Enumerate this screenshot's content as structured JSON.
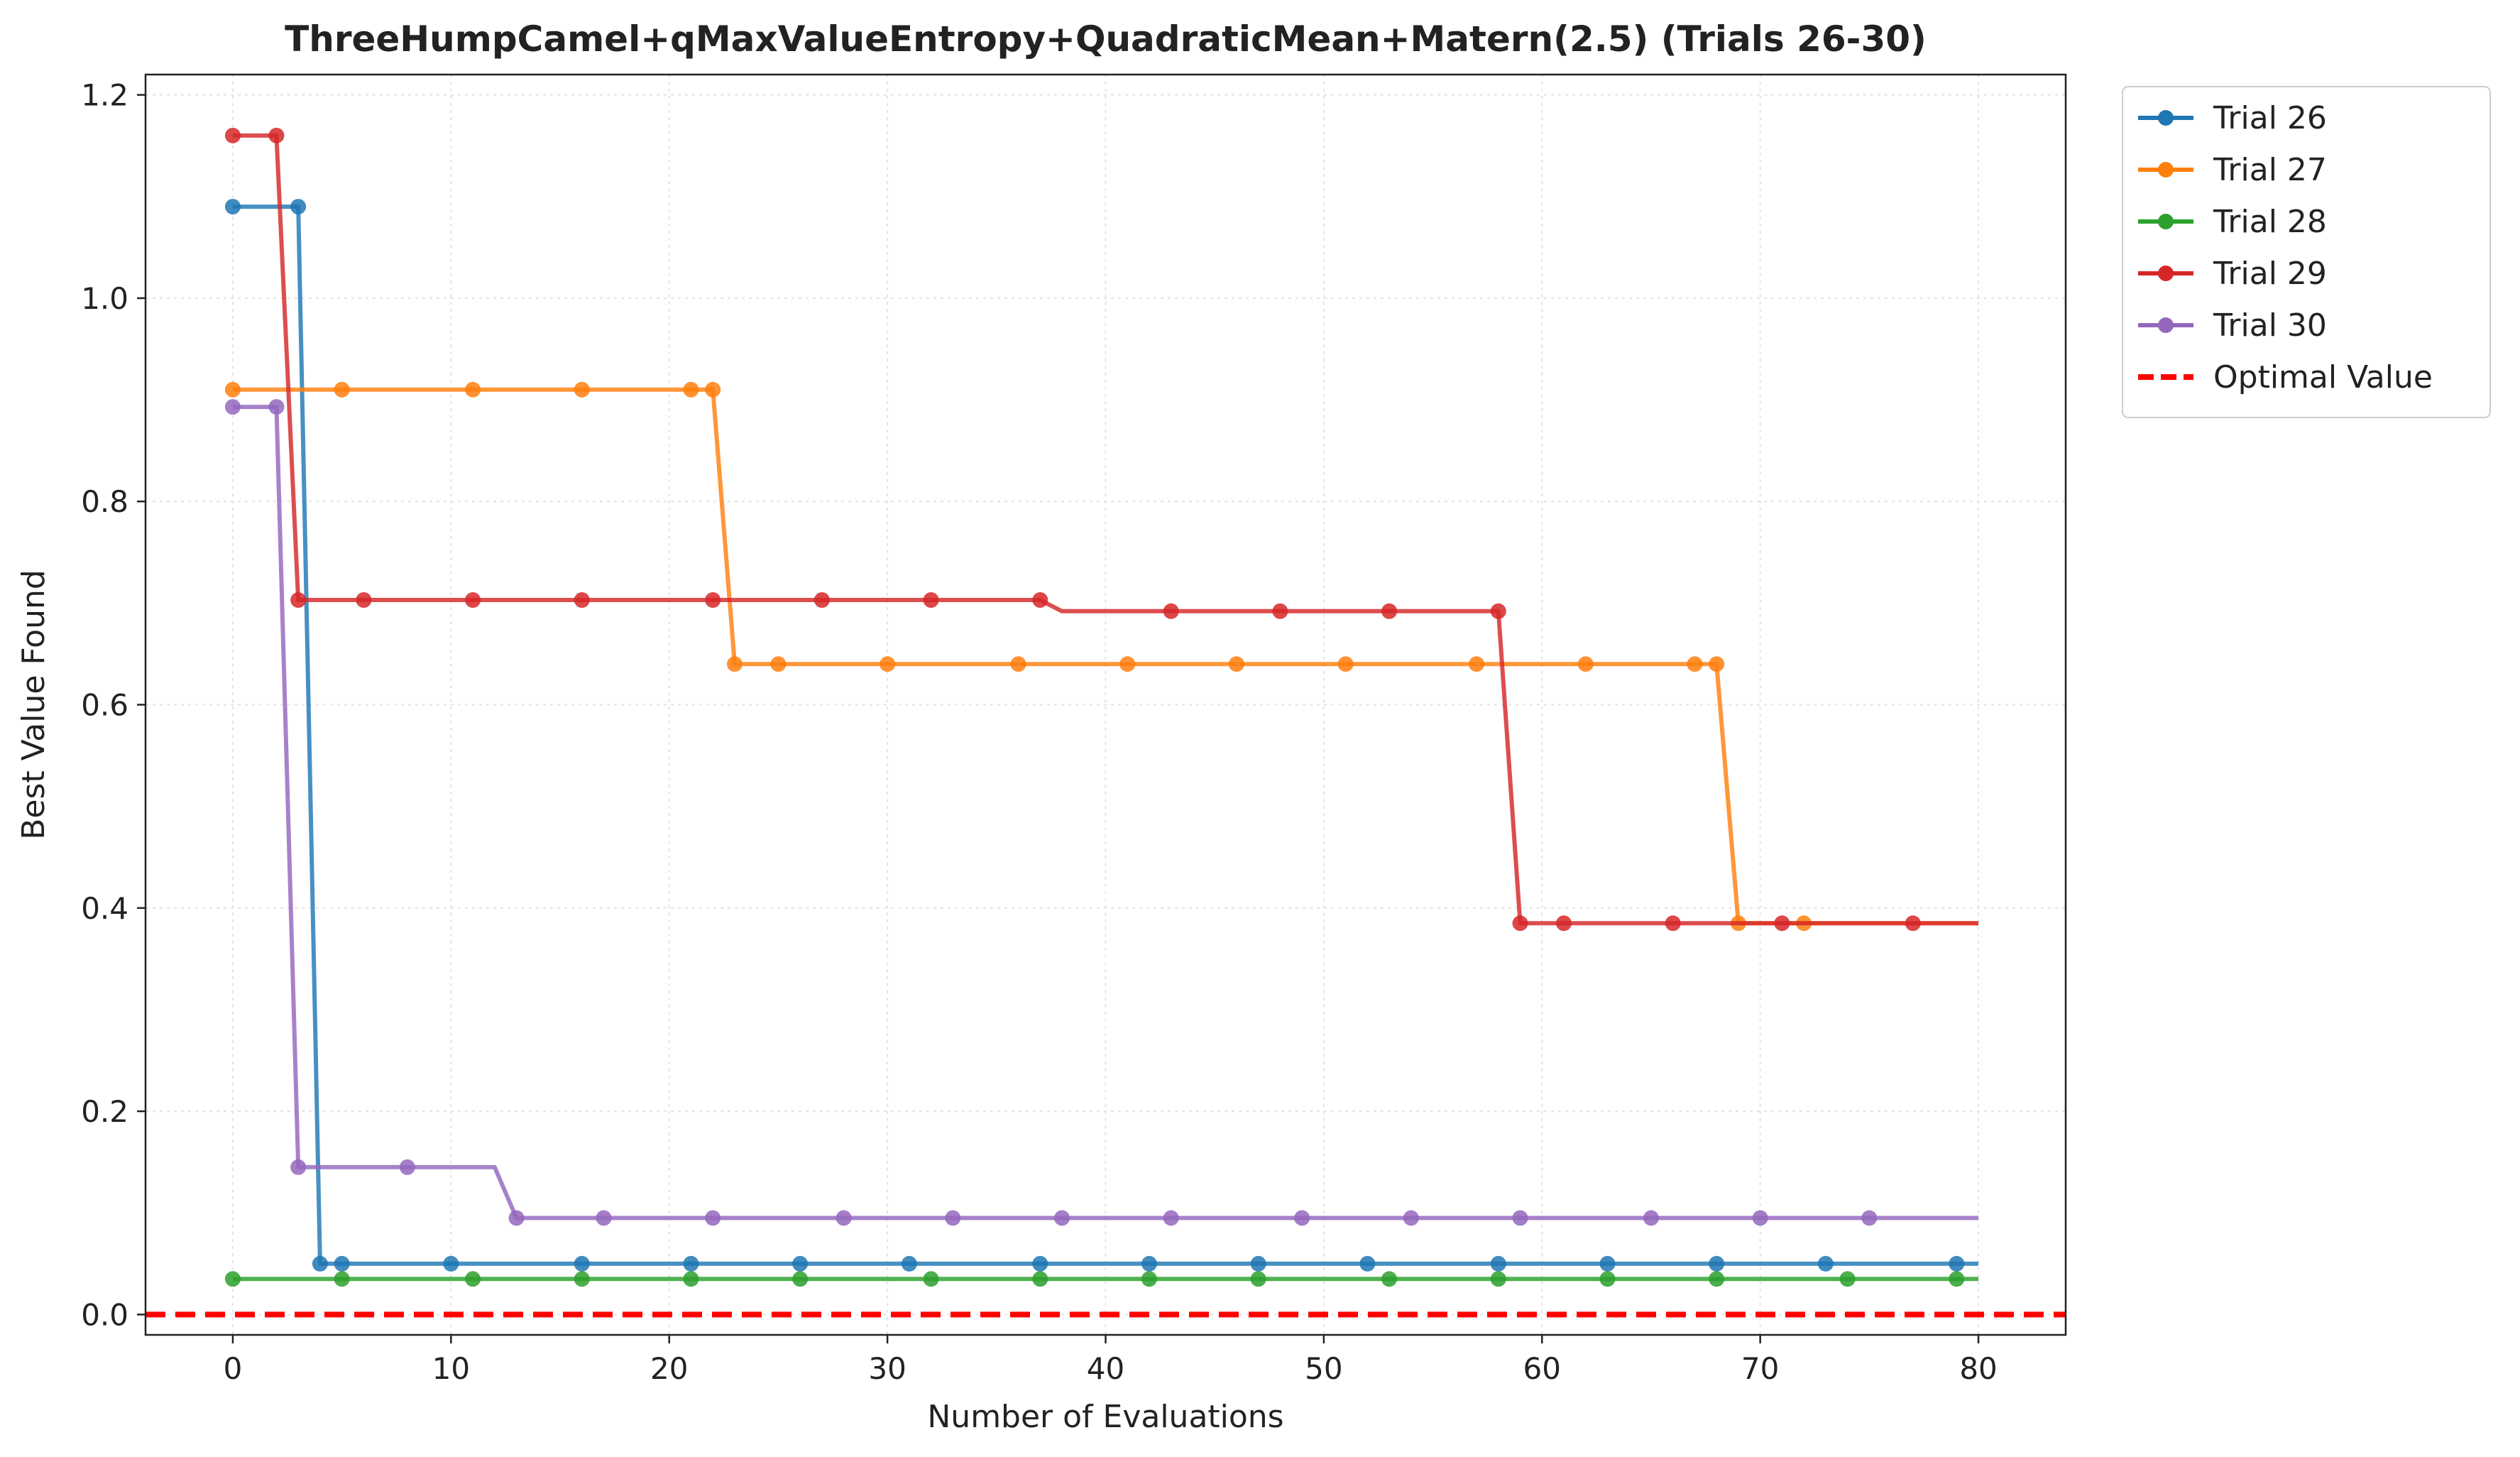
{
  "chart_data": {
    "type": "line",
    "title": "ThreeHumpCamel+qMaxValueEntropy+QuadraticMean+Matern(2.5) (Trials 26-30)",
    "xlabel": "Number of Evaluations",
    "ylabel": "Best Value Found",
    "xlim": [
      -4,
      84
    ],
    "ylim": [
      -0.02,
      1.22
    ],
    "xticks": [
      0,
      10,
      20,
      30,
      40,
      50,
      60,
      70,
      80
    ],
    "yticks": [
      0.0,
      0.2,
      0.4,
      0.6,
      0.8,
      1.0,
      1.2
    ],
    "xtick_labels": [
      "0",
      "10",
      "20",
      "30",
      "40",
      "50",
      "60",
      "70",
      "80"
    ],
    "ytick_labels": [
      "0.0",
      "0.2",
      "0.4",
      "0.6",
      "0.8",
      "1.0",
      "1.2"
    ],
    "grid": true,
    "legend_position": "outside top-right",
    "series": [
      {
        "name": "Trial 26",
        "color": "#1f77b4",
        "line": [
          [
            0,
            1.09
          ],
          [
            3,
            1.09
          ],
          [
            4,
            0.05
          ],
          [
            80,
            0.05
          ]
        ],
        "markers": [
          [
            0,
            1.09
          ],
          [
            3,
            1.09
          ],
          [
            4,
            0.05
          ],
          [
            5,
            0.05
          ],
          [
            10,
            0.05
          ],
          [
            16,
            0.05
          ],
          [
            21,
            0.05
          ],
          [
            26,
            0.05
          ],
          [
            31,
            0.05
          ],
          [
            37,
            0.05
          ],
          [
            42,
            0.05
          ],
          [
            47,
            0.05
          ],
          [
            52,
            0.05
          ],
          [
            58,
            0.05
          ],
          [
            63,
            0.05
          ],
          [
            68,
            0.05
          ],
          [
            73,
            0.05
          ],
          [
            79,
            0.05
          ]
        ]
      },
      {
        "name": "Trial 27",
        "color": "#ff7f0e",
        "line": [
          [
            0,
            0.91
          ],
          [
            22,
            0.91
          ],
          [
            23,
            0.64
          ],
          [
            68,
            0.64
          ],
          [
            69,
            0.385
          ],
          [
            80,
            0.385
          ]
        ],
        "markers": [
          [
            0,
            0.91
          ],
          [
            5,
            0.91
          ],
          [
            11,
            0.91
          ],
          [
            16,
            0.91
          ],
          [
            21,
            0.91
          ],
          [
            22,
            0.91
          ],
          [
            23,
            0.64
          ],
          [
            25,
            0.64
          ],
          [
            30,
            0.64
          ],
          [
            36,
            0.64
          ],
          [
            41,
            0.64
          ],
          [
            46,
            0.64
          ],
          [
            51,
            0.64
          ],
          [
            57,
            0.64
          ],
          [
            62,
            0.64
          ],
          [
            67,
            0.64
          ],
          [
            68,
            0.64
          ],
          [
            69,
            0.385
          ],
          [
            72,
            0.385
          ]
        ]
      },
      {
        "name": "Trial 28",
        "color": "#2ca02c",
        "line": [
          [
            0,
            0.035
          ],
          [
            80,
            0.035
          ]
        ],
        "markers": [
          [
            0,
            0.035
          ],
          [
            5,
            0.035
          ],
          [
            11,
            0.035
          ],
          [
            16,
            0.035
          ],
          [
            21,
            0.035
          ],
          [
            26,
            0.035
          ],
          [
            32,
            0.035
          ],
          [
            37,
            0.035
          ],
          [
            42,
            0.035
          ],
          [
            47,
            0.035
          ],
          [
            53,
            0.035
          ],
          [
            58,
            0.035
          ],
          [
            63,
            0.035
          ],
          [
            68,
            0.035
          ],
          [
            74,
            0.035
          ],
          [
            79,
            0.035
          ]
        ]
      },
      {
        "name": "Trial 29",
        "color": "#d62728",
        "line": [
          [
            0,
            1.16
          ],
          [
            2,
            1.16
          ],
          [
            3,
            0.703
          ],
          [
            37,
            0.703
          ],
          [
            38,
            0.692
          ],
          [
            58,
            0.692
          ],
          [
            59,
            0.385
          ],
          [
            80,
            0.385
          ]
        ],
        "markers": [
          [
            0,
            1.16
          ],
          [
            2,
            1.16
          ],
          [
            3,
            0.703
          ],
          [
            6,
            0.703
          ],
          [
            11,
            0.703
          ],
          [
            16,
            0.703
          ],
          [
            22,
            0.703
          ],
          [
            27,
            0.703
          ],
          [
            32,
            0.703
          ],
          [
            37,
            0.703
          ],
          [
            43,
            0.692
          ],
          [
            48,
            0.692
          ],
          [
            53,
            0.692
          ],
          [
            58,
            0.692
          ],
          [
            59,
            0.385
          ],
          [
            61,
            0.385
          ],
          [
            66,
            0.385
          ],
          [
            71,
            0.385
          ],
          [
            77,
            0.385
          ]
        ]
      },
      {
        "name": "Trial 30",
        "color": "#9467bd",
        "line": [
          [
            0,
            0.893
          ],
          [
            2,
            0.893
          ],
          [
            3,
            0.145
          ],
          [
            12,
            0.145
          ],
          [
            13,
            0.095
          ],
          [
            80,
            0.095
          ]
        ],
        "markers": [
          [
            0,
            0.893
          ],
          [
            2,
            0.893
          ],
          [
            3,
            0.145
          ],
          [
            8,
            0.145
          ],
          [
            13,
            0.095
          ],
          [
            17,
            0.095
          ],
          [
            22,
            0.095
          ],
          [
            28,
            0.095
          ],
          [
            33,
            0.095
          ],
          [
            38,
            0.095
          ],
          [
            43,
            0.095
          ],
          [
            49,
            0.095
          ],
          [
            54,
            0.095
          ],
          [
            59,
            0.095
          ],
          [
            65,
            0.095
          ],
          [
            70,
            0.095
          ],
          [
            75,
            0.095
          ]
        ]
      },
      {
        "name": "Optimal Value",
        "color": "#ff0000",
        "dashed": true,
        "line": [
          [
            -4,
            0.0
          ],
          [
            84,
            0.0
          ]
        ],
        "markers": []
      }
    ]
  }
}
